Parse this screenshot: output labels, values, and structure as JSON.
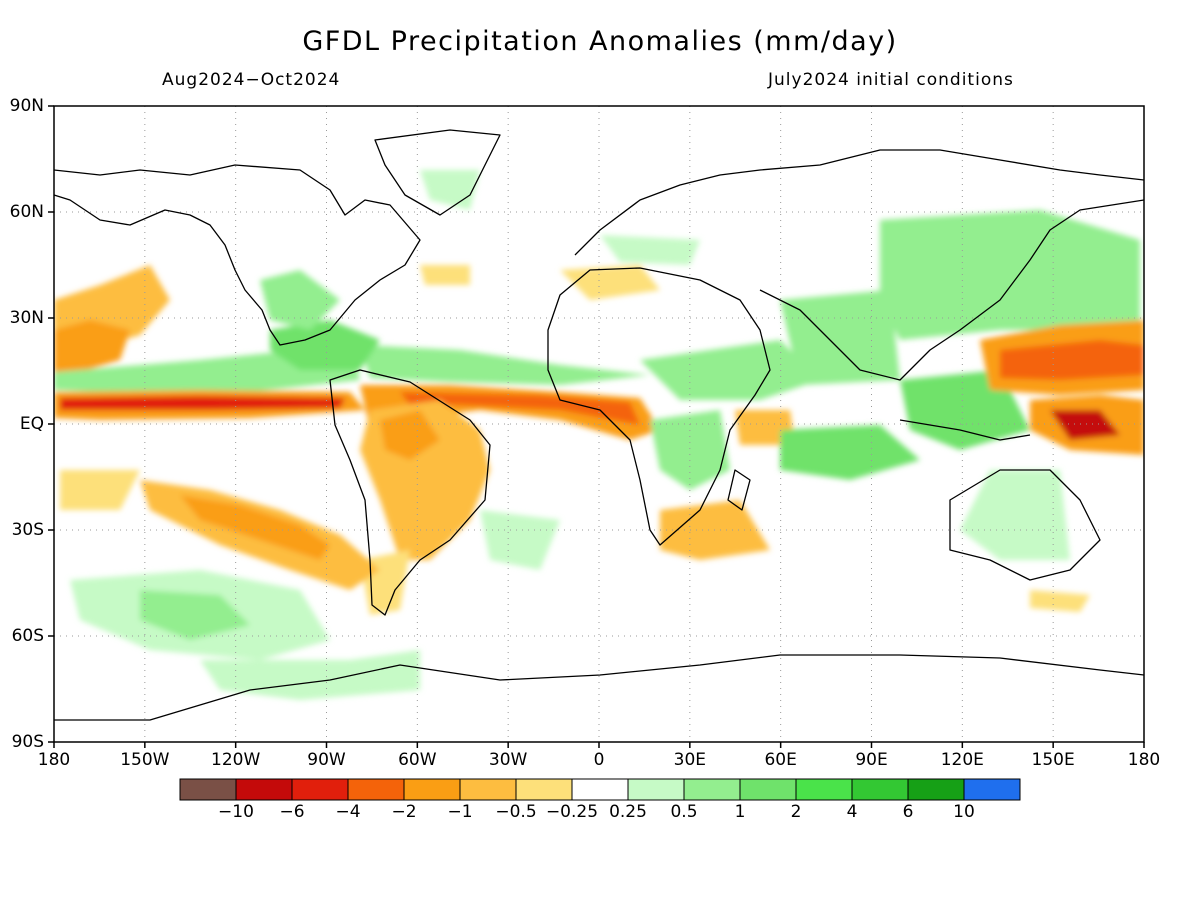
{
  "title": "GFDL Precipitation Anomalies (mm/day)",
  "period": "Aug2024−Oct2024",
  "init": "July2024 initial conditions",
  "lat_labels": [
    "90N",
    "60N",
    "30N",
    "EQ",
    "30S",
    "60S",
    "90S"
  ],
  "lon_labels": [
    "180",
    "150W",
    "120W",
    "90W",
    "60W",
    "30W",
    "0",
    "30E",
    "60E",
    "90E",
    "120E",
    "150E",
    "180"
  ],
  "colorbar": {
    "colors": [
      "#7a5046",
      "#c40a0a",
      "#e11f0c",
      "#f4630a",
      "#fa9e14",
      "#fdbd40",
      "#fde07a",
      "#ffffff",
      "#c6fac6",
      "#93ee8f",
      "#6fe26b",
      "#4ae34a",
      "#33c833",
      "#16a016",
      "#1f6fee"
    ],
    "labels": [
      "−10",
      "−6",
      "−4",
      "−2",
      "−1",
      "−0.5",
      "−0.25",
      "0.25",
      "0.5",
      "1",
      "2",
      "4",
      "6",
      "10"
    ]
  },
  "colors": {
    "wet_light": "#c6fac6",
    "wet_mid": "#93ee8f",
    "wet_strong": "#6fe26b",
    "wet_heavy": "#33c833",
    "dry_light": "#fde07a",
    "dry_mid": "#fdbd40",
    "dry_strong": "#fa9e14",
    "dry_heavy": "#f4630a",
    "dry_extreme": "#e11f0c",
    "dry_max": "#c40a0a"
  }
}
